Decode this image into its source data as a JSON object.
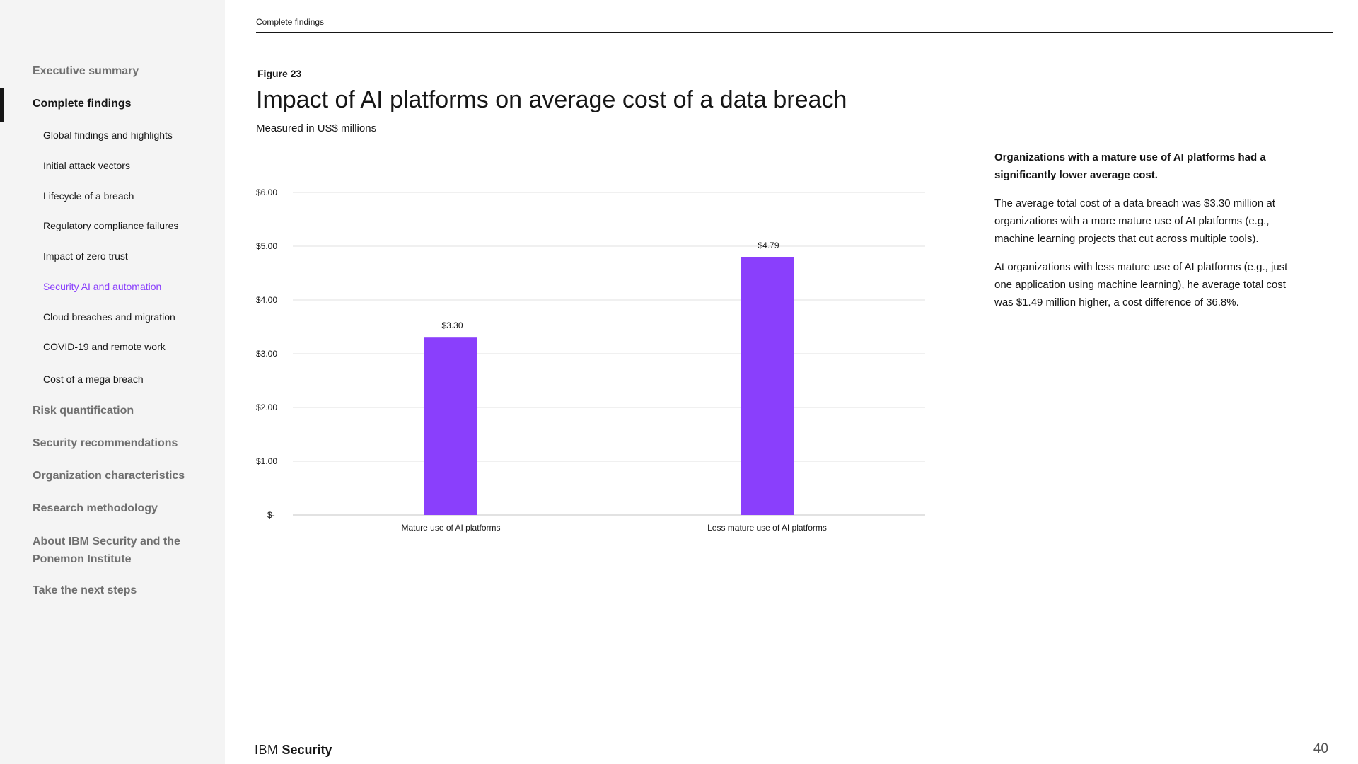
{
  "header": {
    "section_label": "Complete findings"
  },
  "sidebar": {
    "items": [
      {
        "label": "Executive summary"
      },
      {
        "label": "Complete findings"
      },
      {
        "label": "Risk quantification"
      },
      {
        "label": "Security recommendations"
      },
      {
        "label": "Organization characteristics"
      },
      {
        "label": "Research methodology"
      },
      {
        "label": "About IBM Security and the Ponemon Institute"
      },
      {
        "label": "Take the next steps"
      }
    ],
    "subitems": [
      {
        "label": "Global findings and highlights"
      },
      {
        "label": "Initial attack vectors"
      },
      {
        "label": "Lifecycle of a breach"
      },
      {
        "label": "Regulatory compliance failures"
      },
      {
        "label": "Impact of zero trust"
      },
      {
        "label": "Security AI and automation"
      },
      {
        "label": "Cloud breaches and migration"
      },
      {
        "label": "COVID-19 and remote work"
      },
      {
        "label": "Cost of a mega breach"
      }
    ]
  },
  "figure": {
    "number": "Figure 23",
    "title": "Impact of AI platforms on average cost of a data breach",
    "subtitle": "Measured in US$ millions"
  },
  "chart_data": {
    "type": "bar",
    "categories": [
      "Mature use of AI platforms",
      "Less mature use of AI platforms"
    ],
    "values": [
      3.3,
      4.79
    ],
    "value_labels": [
      "$3.30",
      "$4.79"
    ],
    "y_ticks": [
      0,
      1,
      2,
      3,
      4,
      5,
      6
    ],
    "y_tick_labels": [
      "$-",
      "$1.00",
      "$2.00",
      "$3.00",
      "$4.00",
      "$5.00",
      "$6.00"
    ],
    "ylim": [
      0,
      6
    ],
    "grid": true,
    "bar_color": "#8a3ffc"
  },
  "sidetext": {
    "lead": "Organizations with a mature use of AI platforms had a significantly lower average cost.",
    "p1": "The average total cost of a data breach was $3.30 million at organizations with a more mature use of AI platforms (e.g., machine learning projects that cut across multiple tools).",
    "p2": "At organizations with less mature use of AI platforms (e.g., just one application using machine learning), he average total cost was $1.49 million higher, a cost difference of 36.8%."
  },
  "footer": {
    "brand_ibm": "IBM",
    "brand_security": "Security",
    "page_number": "40"
  },
  "colors": {
    "accent": "#8a3ffc",
    "sidebar_bg": "#f4f4f4"
  }
}
